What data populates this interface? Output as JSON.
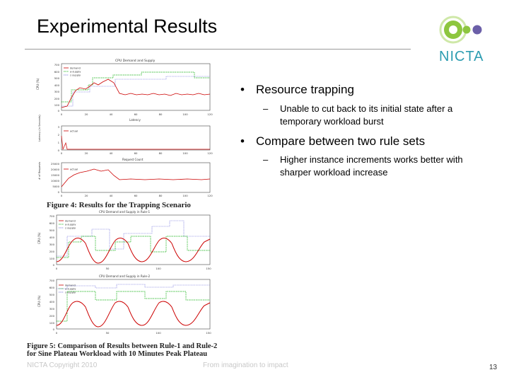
{
  "slide": {
    "title": "Experimental Results",
    "logo": {
      "text": "NICTA",
      "icon": "nicta-logo-icon",
      "colors": {
        "green": "#8dc63f",
        "purple": "#6b5fa8",
        "teal": "#2d9db1"
      }
    },
    "bullets": [
      {
        "text": "Resource trapping",
        "sub": [
          "Unable to cut back to its initial state after a temporary workload burst"
        ]
      },
      {
        "text": "Compare between two rule sets",
        "sub": [
          "Higher instance increments works better with sharper workload increase"
        ]
      }
    ],
    "footer": {
      "left": "NICTA Copyright 2010",
      "center": "From imagination to impact",
      "page": "13"
    }
  },
  "figure4": {
    "caption": "Figure 4: Results for the Trapping Scenario",
    "panels": [
      {
        "title": "CPU Demand and Supply",
        "ylabel": "CPU (%)",
        "xlabel": "Latency",
        "yticks": [
          "700",
          "600",
          "500",
          "400",
          "300",
          "200",
          "100",
          "0"
        ],
        "xticks": [
          "0",
          "20",
          "40",
          "60",
          "80",
          "100",
          "120"
        ],
        "legend": [
          "demand",
          "a-supply",
          "c-supply"
        ]
      },
      {
        "title": "",
        "ylabel": "Latency (in Seconds)",
        "xlabel": "Request Count",
        "yticks": [
          "3",
          "2",
          "1",
          "0"
        ],
        "xticks": [
          "0",
          "20",
          "40",
          "60",
          "80",
          "100",
          "120"
        ],
        "legend": [
          "actual"
        ]
      },
      {
        "title": "",
        "ylabel": "# of Requests",
        "xlabel": "",
        "yticks": [
          "25000",
          "20000",
          "15000",
          "10000",
          "5000",
          "0"
        ],
        "xticks": [
          "0",
          "20",
          "40",
          "60",
          "80",
          "100",
          "120"
        ],
        "legend": [
          "actual"
        ]
      }
    ]
  },
  "figure5": {
    "caption": "Figure 5: Comparison of Results between Rule-1 and Rule-2 for Sine Plateau Workload with 10 Minutes Peak Plateau",
    "panels": [
      {
        "title": "CPU Demand and Supply in Rule-1",
        "ylabel": "CPU (%)",
        "yticks": [
          "700",
          "600",
          "500",
          "400",
          "300",
          "200",
          "100",
          "0"
        ],
        "xticks": [
          "0",
          "50",
          "100",
          "150"
        ],
        "legend": [
          "demand",
          "a-supply",
          "c-supply"
        ]
      },
      {
        "title": "CPU Demand and Supply in Rule-2",
        "ylabel": "CPU (%)",
        "yticks": [
          "700",
          "600",
          "500",
          "400",
          "300",
          "200",
          "100",
          "0"
        ],
        "xticks": [
          "0",
          "50",
          "100",
          "150"
        ],
        "legend": [
          "demand",
          "a-supply",
          "c-supply"
        ]
      }
    ]
  }
}
